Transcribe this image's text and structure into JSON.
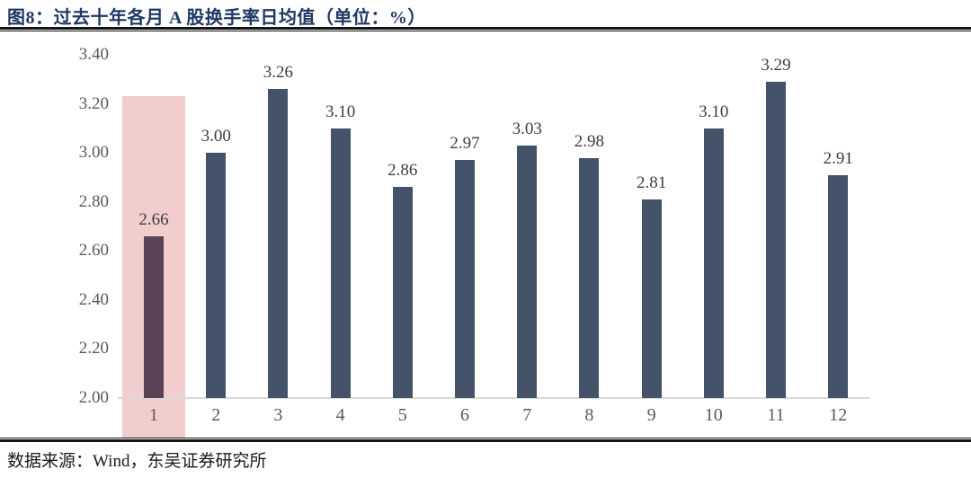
{
  "figure": {
    "title": "图8：过去十年各月 A 股换手率日均值（单位：%）",
    "source_note": "数据来源：Wind，东吴证券研究所"
  },
  "chart_data": {
    "type": "bar",
    "title": "过去十年各月 A 股换手率日均值",
    "unit": "%",
    "xlabel": "",
    "ylabel": "",
    "categories": [
      "1",
      "2",
      "3",
      "4",
      "5",
      "6",
      "7",
      "8",
      "9",
      "10",
      "11",
      "12"
    ],
    "values": [
      2.66,
      3.0,
      3.26,
      3.1,
      2.86,
      2.97,
      3.03,
      2.98,
      2.81,
      3.1,
      3.29,
      2.91
    ],
    "value_labels": [
      "2.66",
      "3.00",
      "3.26",
      "3.10",
      "2.86",
      "2.97",
      "3.03",
      "2.98",
      "2.81",
      "3.10",
      "3.29",
      "2.91"
    ],
    "ylim": [
      2.0,
      3.4
    ],
    "ytick_values": [
      3.4,
      3.2,
      3.0,
      2.8,
      2.6,
      2.4,
      2.2,
      2.0
    ],
    "ytick_labels": [
      "3.40",
      "3.20",
      "3.00",
      "2.80",
      "2.60",
      "2.40",
      "2.20",
      "2.00"
    ],
    "grid": false,
    "legend": false,
    "highlight": {
      "category": "1",
      "index": 0,
      "band_top_value": 3.23,
      "band_color": "#f2cdcd",
      "bar_color": "#5a4356"
    },
    "colors": {
      "bar": "#44536a",
      "axis_line": "#d9d9d9",
      "tick_label": "#595959",
      "value_label": "#3d3d3d",
      "title_text": "#1f3864"
    }
  }
}
